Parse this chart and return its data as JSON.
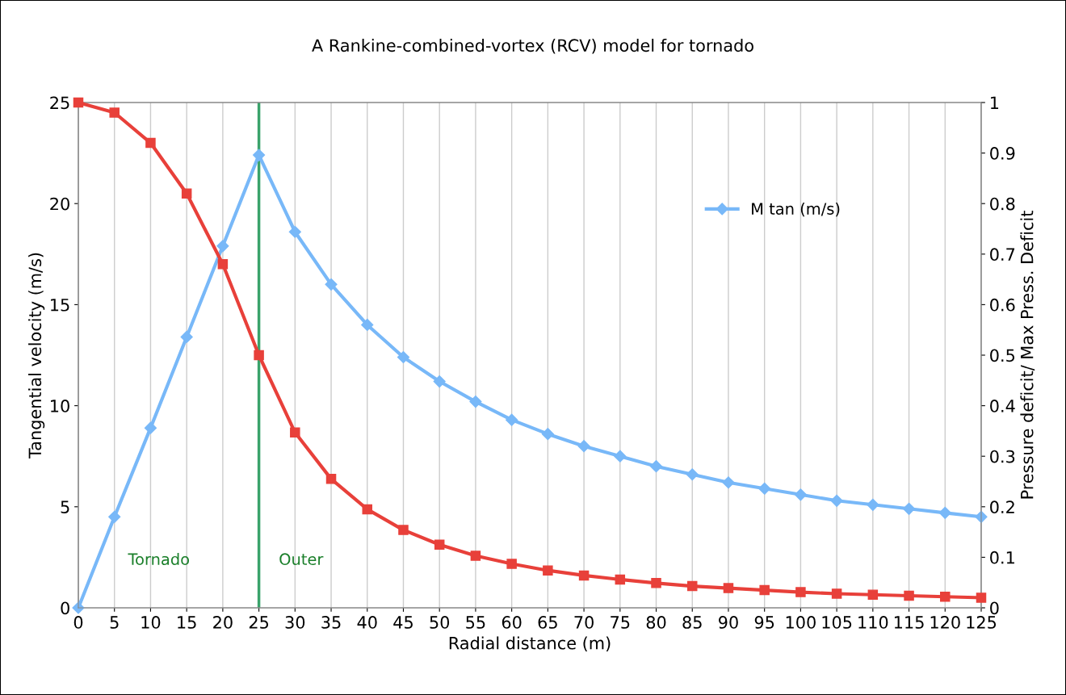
{
  "chart_data": {
    "type": "line",
    "title": "A Rankine-combined-vortex (RCV) model for tornado",
    "xlabel": "Radial distance (m)",
    "ylabel": "Tangential velocity (m/s)",
    "y2label": "Pressure deficit/ Max Press. Deficit",
    "x": [
      0,
      5,
      10,
      15,
      20,
      25,
      30,
      35,
      40,
      45,
      50,
      55,
      60,
      65,
      70,
      75,
      80,
      85,
      90,
      95,
      100,
      105,
      110,
      115,
      120,
      125
    ],
    "series": [
      {
        "name": "M tan (m/s)",
        "color": "#78b8f8",
        "marker": "diamond",
        "values": [
          0,
          4.5,
          8.9,
          13.4,
          17.9,
          22.4,
          18.6,
          16.0,
          14.0,
          12.4,
          11.2,
          10.2,
          9.3,
          8.6,
          8.0,
          7.5,
          7.0,
          6.6,
          6.2,
          5.9,
          5.6,
          5.3,
          5.1,
          4.9,
          4.7,
          4.5
        ]
      },
      {
        "color": "#e8403a",
        "marker": "square",
        "axis": "y2",
        "values": [
          1.0,
          0.98,
          0.92,
          0.82,
          0.68,
          0.5,
          0.347,
          0.255,
          0.195,
          0.154,
          0.125,
          0.103,
          0.087,
          0.074,
          0.064,
          0.056,
          0.049,
          0.043,
          0.039,
          0.035,
          0.031,
          0.028,
          0.026,
          0.024,
          0.022,
          0.02
        ]
      }
    ],
    "xlim": [
      0,
      125
    ],
    "xticks": [
      0,
      5,
      10,
      15,
      20,
      25,
      30,
      35,
      40,
      45,
      50,
      55,
      60,
      65,
      70,
      75,
      80,
      85,
      90,
      95,
      100,
      105,
      110,
      115,
      120,
      125
    ],
    "ylim": [
      0,
      25
    ],
    "yticks": [
      0,
      5,
      10,
      15,
      20,
      25
    ],
    "y2lim": [
      0,
      1
    ],
    "y2ticks": [
      0,
      0.1,
      0.2,
      0.3,
      0.4,
      0.5,
      0.6,
      0.7,
      0.8,
      0.9,
      1
    ],
    "ref_lines": [
      {
        "axis": "x",
        "value": 25,
        "color": "#3aa36b"
      }
    ],
    "annotations": [
      "Tornado",
      "Outer"
    ],
    "grid": "x",
    "legend": "top right",
    "line_style": "solid"
  }
}
